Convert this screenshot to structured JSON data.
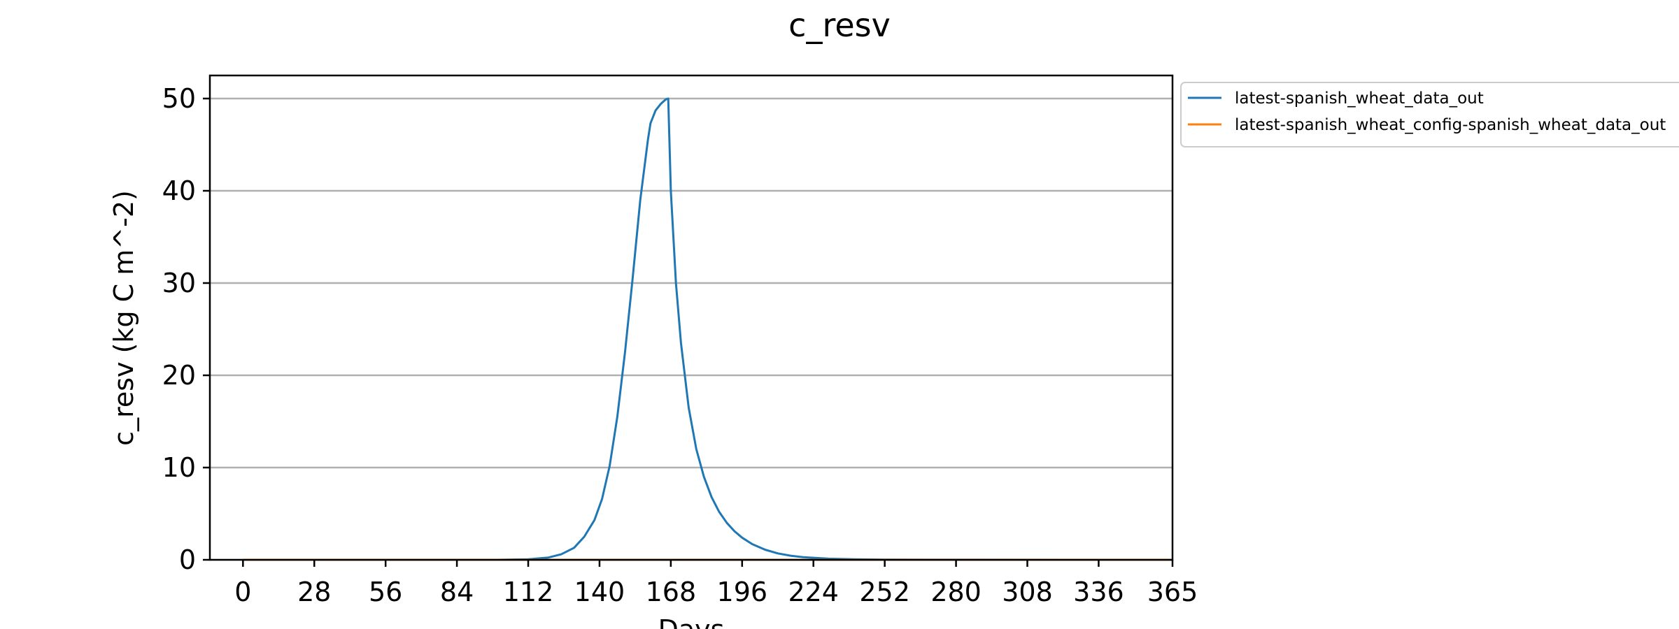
{
  "chart_data": {
    "type": "line",
    "title": "c_resv",
    "xlabel": "Days",
    "ylabel": "c_resv (kg C m^-2)",
    "xlim": [
      -13,
      365
    ],
    "ylim": [
      0,
      52.5
    ],
    "x_ticks": [
      0,
      28,
      56,
      84,
      112,
      140,
      168,
      196,
      224,
      252,
      280,
      308,
      336,
      365
    ],
    "y_ticks": [
      0,
      10,
      20,
      30,
      40,
      50
    ],
    "grid": "horizontal",
    "legend_position": "outside-top-right",
    "series": [
      {
        "name": "latest-spanish_wheat_data_out",
        "color": "#1f77b4",
        "x": [
          0,
          100,
          112,
          120,
          125,
          130,
          134,
          138,
          141,
          144,
          147,
          150,
          153,
          156,
          159,
          160,
          162,
          164,
          166,
          167,
          168,
          170,
          172,
          175,
          178,
          181,
          184,
          187,
          190,
          193,
          196,
          200,
          205,
          210,
          215,
          220,
          230,
          240,
          252,
          270,
          365
        ],
        "values": [
          0,
          0,
          0.05,
          0.25,
          0.6,
          1.3,
          2.5,
          4.3,
          6.6,
          10.2,
          15.5,
          22.5,
          30.5,
          39,
          45.5,
          47.3,
          48.7,
          49.4,
          49.9,
          50,
          40,
          30,
          23.5,
          16.5,
          12,
          9,
          6.8,
          5.2,
          4,
          3.1,
          2.4,
          1.7,
          1.1,
          0.7,
          0.45,
          0.28,
          0.12,
          0.05,
          0.02,
          0.01,
          0
        ]
      },
      {
        "name": "latest-spanish_wheat_config-spanish_wheat_data_out",
        "color": "#ff7f0e",
        "x": [
          0,
          365
        ],
        "values": [
          0,
          0
        ]
      }
    ]
  }
}
